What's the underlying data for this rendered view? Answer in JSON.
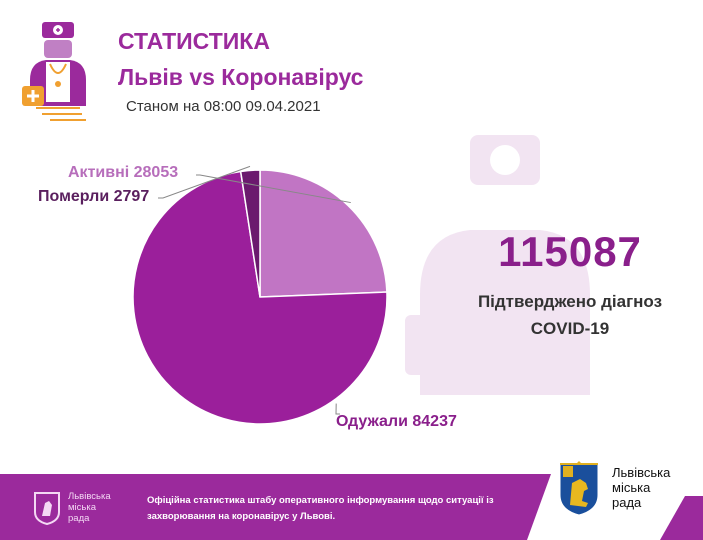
{
  "header": {
    "title": "СТАТИСТИКА",
    "subtitle": "Львів vs Коронавірус",
    "date": "Станом на 08:00 09.04.2021"
  },
  "summary": {
    "total": "115087",
    "label": "Підтверджено діагноз COVID-19"
  },
  "chart_data": {
    "type": "pie",
    "slices": [
      {
        "name": "Одужали",
        "value": 84237,
        "color": "#9b1f9b",
        "label": "Одужали 84237"
      },
      {
        "name": "Активні",
        "value": 28053,
        "color": "#c175c4",
        "label": "Активні 28053"
      },
      {
        "name": "Померли",
        "value": 2797,
        "color": "#6b1a6e",
        "label": "Померли 2797"
      }
    ],
    "label_colors": {
      "Одужали": "#8a1f8b",
      "Активні": "#b76ebb",
      "Померли": "#5a1f5e"
    }
  },
  "footer": {
    "org": "Львівська\nміська\nрада",
    "note": "Офіційна статистика штабу оперативного інформування щодо ситуації із захворювання на коронавірус у Львові.",
    "brand": "Львівська\nміська\nрада"
  },
  "colors": {
    "accent": "#9b2a9c",
    "footer_bg": "#9b2a9c"
  },
  "icons": [
    "doctor-icon",
    "lion-crest-icon"
  ]
}
